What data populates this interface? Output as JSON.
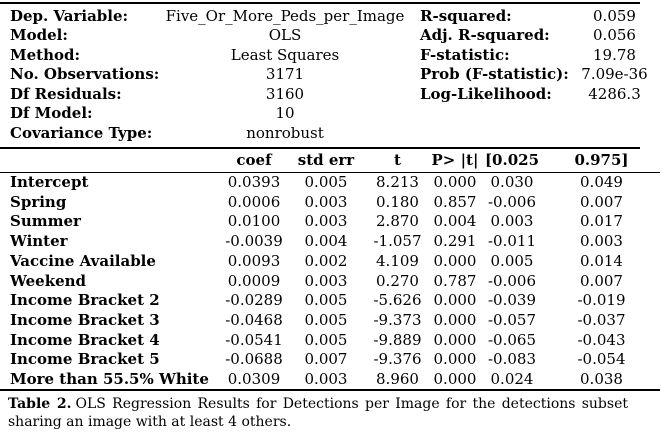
{
  "page": {
    "background": "#ffffff",
    "text_color": "#000000",
    "rule_color": "#000000"
  },
  "summary": {
    "left": [
      {
        "label": "Dep. Variable:",
        "value": "Five_Or_More_Peds_per_Image"
      },
      {
        "label": "Model:",
        "value": "OLS"
      },
      {
        "label": "Method:",
        "value": "Least Squares"
      },
      {
        "label": "No. Observations:",
        "value": "3171"
      },
      {
        "label": "Df Residuals:",
        "value": "3160"
      },
      {
        "label": "Df Model:",
        "value": "10"
      },
      {
        "label": "Covariance Type:",
        "value": "nonrobust"
      }
    ],
    "right": [
      {
        "label": "R-squared:",
        "value": "0.059"
      },
      {
        "label": "Adj. R-squared:",
        "value": "0.056"
      },
      {
        "label": "F-statistic:",
        "value": "19.78"
      },
      {
        "label": "Prob (F-statistic):",
        "value": "7.09e-36"
      },
      {
        "label": "Log-Likelihood:",
        "value": "4286.3"
      }
    ]
  },
  "coef_table": {
    "headers": [
      "",
      "coef",
      "std err",
      "t",
      "P> |t|",
      "[0.025",
      "0.975]"
    ],
    "rows": [
      {
        "name": "Intercept",
        "values": [
          "0.0393",
          "0.005",
          "8.213",
          "0.000",
          "0.030",
          "0.049"
        ]
      },
      {
        "name": "Spring",
        "values": [
          "0.0006",
          "0.003",
          "0.180",
          "0.857",
          "-0.006",
          "0.007"
        ]
      },
      {
        "name": "Summer",
        "values": [
          "0.0100",
          "0.003",
          "2.870",
          "0.004",
          "0.003",
          "0.017"
        ]
      },
      {
        "name": "Winter",
        "values": [
          "-0.0039",
          "0.004",
          "-1.057",
          "0.291",
          "-0.011",
          "0.003"
        ]
      },
      {
        "name": "Vaccine Available",
        "values": [
          "0.0093",
          "0.002",
          "4.109",
          "0.000",
          "0.005",
          "0.014"
        ]
      },
      {
        "name": "Weekend",
        "values": [
          "0.0009",
          "0.003",
          "0.270",
          "0.787",
          "-0.006",
          "0.007"
        ]
      },
      {
        "name": "Income Bracket 2",
        "values": [
          "-0.0289",
          "0.005",
          "-5.626",
          "0.000",
          "-0.039",
          "-0.019"
        ]
      },
      {
        "name": "Income Bracket 3",
        "values": [
          "-0.0468",
          "0.005",
          "-9.373",
          "0.000",
          "-0.057",
          "-0.037"
        ]
      },
      {
        "name": "Income Bracket 4",
        "values": [
          "-0.0541",
          "0.005",
          "-9.889",
          "0.000",
          "-0.065",
          "-0.043"
        ]
      },
      {
        "name": "Income Bracket 5",
        "values": [
          "-0.0688",
          "0.007",
          "-9.376",
          "0.000",
          "-0.083",
          "-0.054"
        ]
      },
      {
        "name": "More than 55.5% White",
        "values": [
          "0.0309",
          "0.003",
          "8.960",
          "0.000",
          "0.024",
          "0.038"
        ]
      }
    ]
  },
  "caption": {
    "label": "Table 2.",
    "text": "OLS Regression Results for Detections per Image for the detections subset sharing an image with at least 4 others."
  }
}
